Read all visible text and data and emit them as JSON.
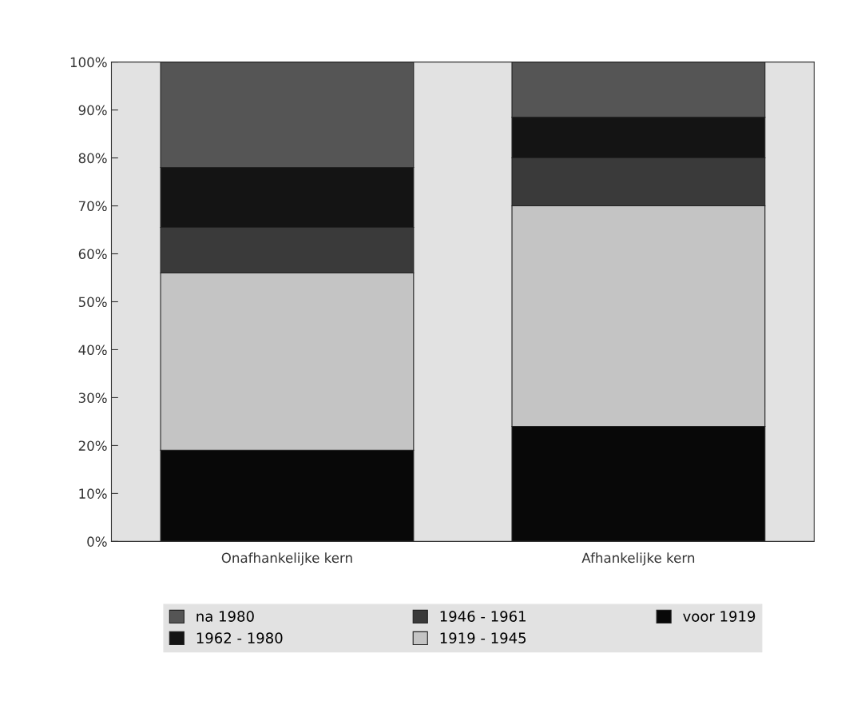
{
  "chart_data": {
    "type": "bar",
    "stacked": true,
    "categories": [
      "Onafhankelijke kern",
      "Afhankelijke kern"
    ],
    "series": [
      {
        "name": "voor 1919",
        "color": "#080808",
        "values": [
          19,
          24
        ]
      },
      {
        "name": "1919 - 1945",
        "color": "#c4c4c4",
        "values": [
          37,
          46
        ]
      },
      {
        "name": "1946 - 1961",
        "color": "#3a3a3a",
        "values": [
          9.5,
          10
        ]
      },
      {
        "name": "1962 - 1980",
        "color": "#141414",
        "values": [
          12.5,
          8.5
        ]
      },
      {
        "name": "na 1980",
        "color": "#555555",
        "values": [
          22,
          11.5
        ]
      }
    ],
    "ylim": [
      0,
      100
    ],
    "yticks": [
      {
        "value": 0,
        "label": "0%"
      },
      {
        "value": 10,
        "label": "10%"
      },
      {
        "value": 20,
        "label": "20%"
      },
      {
        "value": 30,
        "label": "30%"
      },
      {
        "value": 40,
        "label": "40%"
      },
      {
        "value": 50,
        "label": "50%"
      },
      {
        "value": 60,
        "label": "60%"
      },
      {
        "value": 70,
        "label": "70%"
      },
      {
        "value": 80,
        "label": "80%"
      },
      {
        "value": 90,
        "label": "90%"
      },
      {
        "value": 100,
        "label": "100%"
      }
    ],
    "grid": false,
    "legend": "bottom"
  }
}
